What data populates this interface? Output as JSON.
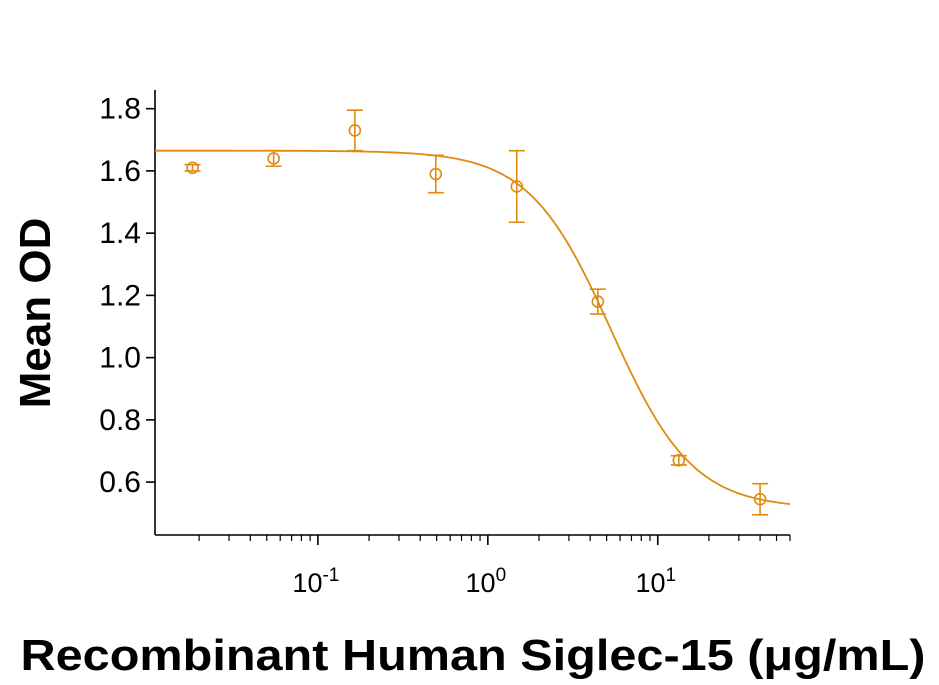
{
  "chart_data": {
    "type": "scatter",
    "x_scale": "log",
    "xlabel": "Recombinant Human Siglec-15 (μg/mL)",
    "ylabel": "Mean OD",
    "ylim": [
      0.43,
      1.86
    ],
    "xlim": [
      0.011,
      60
    ],
    "grid": false,
    "legend": "none",
    "y_ticks": [
      "0.6",
      "0.8",
      "1.0",
      "1.2",
      "1.4",
      "1.6",
      "1.8"
    ],
    "x_ticks": [
      {
        "value": 0.1,
        "base": "10",
        "exp": "-1"
      },
      {
        "value": 1,
        "base": "10",
        "exp": "0"
      },
      {
        "value": 10,
        "base": "10",
        "exp": "1"
      }
    ],
    "color": "#E08A12",
    "points": [
      {
        "x": 0.0183,
        "y": 1.61,
        "err": 0.01
      },
      {
        "x": 0.0549,
        "y": 1.64,
        "err": 0.025
      },
      {
        "x": 0.165,
        "y": 1.73,
        "err": 0.065
      },
      {
        "x": 0.494,
        "y": 1.59,
        "err": 0.06
      },
      {
        "x": 1.48,
        "y": 1.55,
        "err": 0.115
      },
      {
        "x": 4.44,
        "y": 1.18,
        "err": 0.04
      },
      {
        "x": 13.3,
        "y": 0.67,
        "err": 0.015
      },
      {
        "x": 40,
        "y": 0.545,
        "err": 0.05
      }
    ],
    "fit": {
      "model": "4PL",
      "top": 1.665,
      "bottom": 0.515,
      "ec50": 5.3,
      "hill": 1.8
    }
  }
}
